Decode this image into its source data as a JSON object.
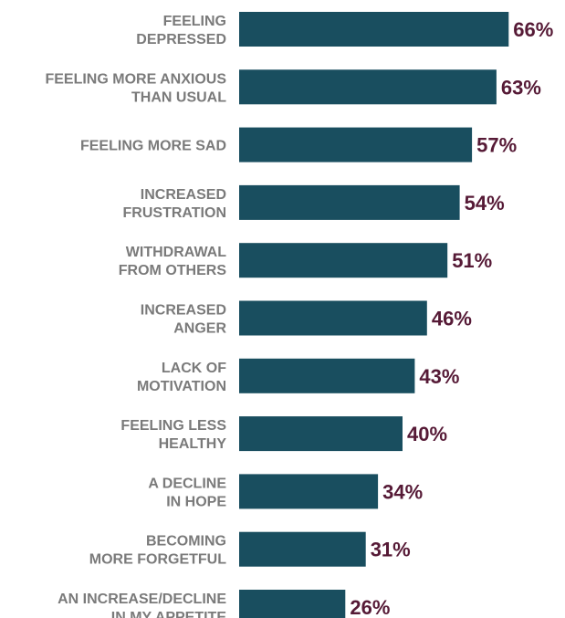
{
  "chart_data": {
    "type": "bar",
    "orientation": "horizontal",
    "categories": [
      [
        "FEELING",
        "DEPRESSED"
      ],
      [
        "FEELING MORE ANXIOUS",
        "THAN USUAL"
      ],
      [
        "FEELING MORE SAD"
      ],
      [
        "INCREASED",
        "FRUSTRATION"
      ],
      [
        "WITHDRAWAL",
        "FROM OTHERS"
      ],
      [
        "INCREASED",
        "ANGER"
      ],
      [
        "LACK OF",
        "MOTIVATION"
      ],
      [
        "FEELING LESS",
        "HEALTHY"
      ],
      [
        "A DECLINE",
        "IN HOPE"
      ],
      [
        "BECOMING",
        "MORE FORGETFUL"
      ],
      [
        "AN INCREASE/DECLINE",
        "IN MY APPETITE"
      ]
    ],
    "values": [
      66,
      63,
      57,
      54,
      51,
      46,
      43,
      40,
      34,
      31,
      26
    ],
    "value_labels": [
      "66%",
      "63%",
      "57%",
      "54%",
      "51%",
      "46%",
      "43%",
      "40%",
      "34%",
      "31%",
      "26%"
    ],
    "unit": "%",
    "grid": false,
    "legend": "none",
    "title": "",
    "xlabel": "",
    "ylabel": ""
  },
  "colors": {
    "bar": "#194e5f",
    "value_label": "#561a36",
    "category_label": "#7a7a7a"
  }
}
